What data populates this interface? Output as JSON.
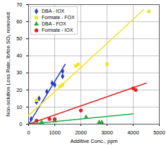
{
  "chart_data": {
    "type": "scatter",
    "x_label": "Additive Conc., ppm",
    "y_label": "Non-solution Loss Rate, lb/ton SO₂ removed",
    "xlim": [
      0,
      5000
    ],
    "xticks": [
      0,
      1000,
      2000,
      3000,
      4000,
      5000
    ],
    "ylim": [
      0,
      70
    ],
    "yticks": [
      0,
      10,
      20,
      30,
      40,
      50,
      60,
      70
    ],
    "grid": true,
    "legend": "upper left",
    "series": [
      {
        "name": "DBA - IOX",
        "color": "#2b3fcf",
        "marker": "diamond",
        "x": [
          100,
          300,
          400,
          700,
          900,
          1000,
          1300,
          1300
        ],
        "values": [
          3,
          13,
          15,
          19,
          24,
          23,
          28,
          31
        ],
        "trend_x": [
          0,
          1400
        ],
        "trend_y": [
          0,
          35
        ]
      },
      {
        "name": "Formate - FOX",
        "color": "#f2e21e",
        "marker": "square",
        "x": [
          300,
          1200,
          1300,
          1800,
          1900,
          3000,
          4600
        ],
        "values": [
          14,
          22,
          23,
          34,
          35,
          35,
          66
        ],
        "trend_x": [
          0,
          4400
        ],
        "trend_y": [
          5,
          67
        ]
      },
      {
        "name": "DBA - FOX",
        "color": "#22aa44",
        "marker": "triangle",
        "x": [
          200,
          500,
          1000,
          2200,
          2700,
          2800
        ],
        "values": [
          0,
          1,
          2,
          4,
          1,
          1
        ],
        "trend_x": [
          0,
          4000
        ],
        "trend_y": [
          0,
          6
        ]
      },
      {
        "name": "Formate - IOX",
        "color": "#dd2222",
        "marker": "circle",
        "x": [
          300,
          800,
          1000,
          2000,
          4000,
          4100
        ],
        "values": [
          2,
          3,
          3,
          8,
          21,
          20
        ],
        "trend_x": [
          0,
          4500
        ],
        "trend_y": [
          0,
          24
        ]
      }
    ]
  }
}
